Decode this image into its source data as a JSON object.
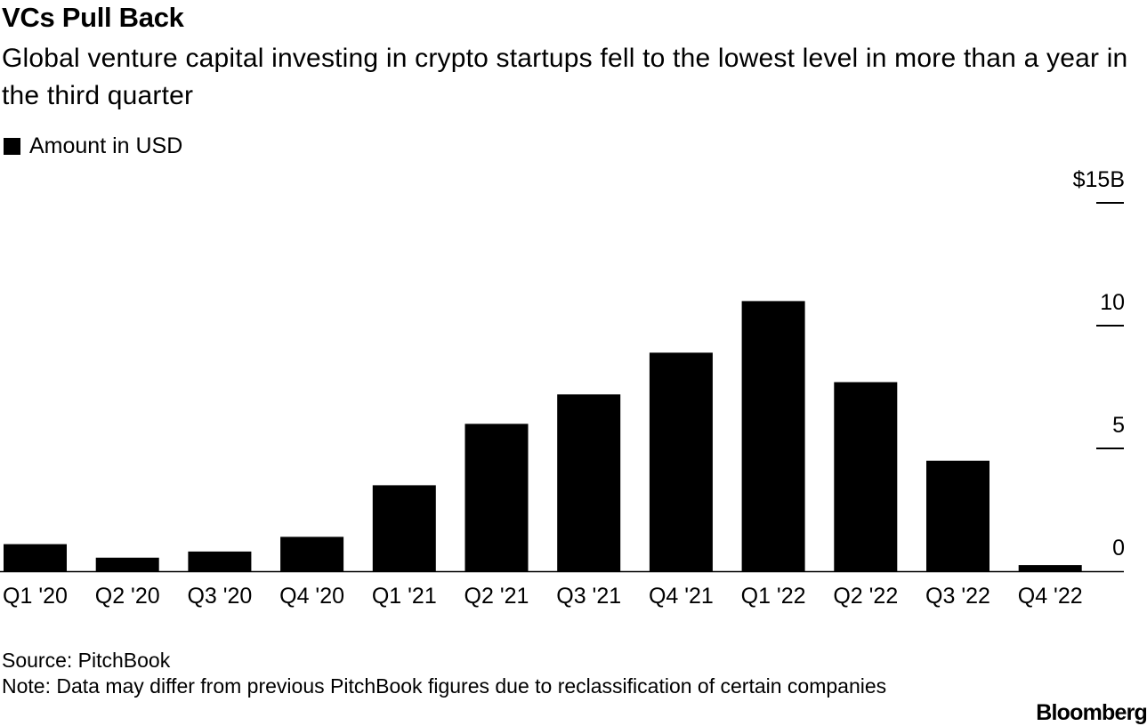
{
  "title": "VCs Pull Back",
  "subtitle": "Global venture capital investing in crypto startups fell to the lowest level in more than a year in the third quarter",
  "legend": {
    "label": "Amount in USD"
  },
  "chart_data": {
    "type": "bar",
    "categories": [
      "Q1 '20",
      "Q2 '20",
      "Q3 '20",
      "Q4 '20",
      "Q1 '21",
      "Q2 '21",
      "Q3 '21",
      "Q4 '21",
      "Q1 '22",
      "Q2 '22",
      "Q3 '22",
      "Q4 '22"
    ],
    "series": [
      {
        "name": "Amount in USD",
        "values": [
          1.1,
          0.55,
          0.8,
          1.4,
          3.5,
          6.0,
          7.2,
          8.9,
          11.0,
          7.7,
          4.5,
          0.25
        ]
      }
    ],
    "yticks": [
      {
        "value": 0,
        "label": "0"
      },
      {
        "value": 5,
        "label": "5"
      },
      {
        "value": 10,
        "label": "10"
      },
      {
        "value": 15,
        "label": "$15B"
      }
    ],
    "ylim": [
      0,
      15
    ],
    "xlabel": "",
    "ylabel": "",
    "grid": false,
    "axis_position": "right",
    "bar_color": "#000000"
  },
  "footer": {
    "source": "Source: PitchBook",
    "note": "Note: Data may differ from previous PitchBook figures due to reclassification of certain companies",
    "brand": "Bloomberg"
  }
}
